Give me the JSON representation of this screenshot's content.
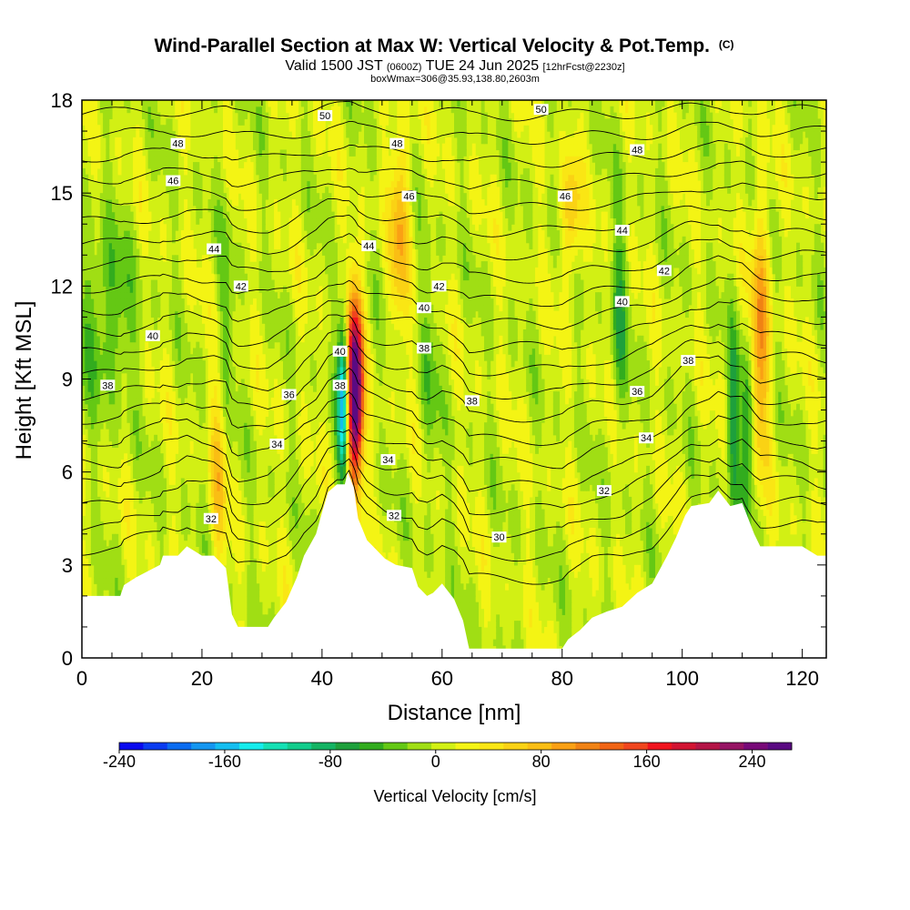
{
  "chart_data": {
    "type": "heatmap",
    "title": "Wind-Parallel Section at Max W: Vertical Velocity & Pot.Temp.",
    "title_mark": "(C)",
    "subtitle_parts": [
      "Valid 1500 JST",
      "(0600Z)",
      "TUE 24 Jun 2025",
      "[12hrFcst@2230z]"
    ],
    "subtitle2": "boxWmax=306@35.93,138.80,2603m",
    "xlabel": "Distance [nm]",
    "ylabel": "Height [Kft MSL]",
    "xlim": [
      0,
      124
    ],
    "ylim": [
      0,
      18
    ],
    "x_ticks": [
      0,
      20,
      40,
      60,
      80,
      100,
      120
    ],
    "y_ticks": [
      0,
      3,
      6,
      9,
      12,
      15,
      18
    ],
    "colorbar": {
      "label": "Vertical Velocity [cm/s]",
      "range": [
        -240,
        270
      ],
      "tick_values": [
        -240,
        -160,
        -80,
        0,
        80,
        160,
        240
      ],
      "colors": [
        "#0a0aee",
        "#0a3cf0",
        "#0a6cf0",
        "#1496f0",
        "#14bef0",
        "#14ecec",
        "#14e0b4",
        "#12cc8c",
        "#14b464",
        "#1ea03c",
        "#32ac1e",
        "#64c814",
        "#a0de14",
        "#d2f014",
        "#f4f414",
        "#fae614",
        "#fad214",
        "#fabe14",
        "#faa014",
        "#f08214",
        "#f06414",
        "#f0461e",
        "#f0141e",
        "#d21432",
        "#b41446",
        "#961464",
        "#780a78",
        "#5a0a82"
      ]
    },
    "contour_field": "Potential temperature",
    "contour_levels": [
      30,
      31,
      32,
      33,
      34,
      35,
      36,
      37,
      38,
      39,
      40,
      41,
      42,
      43,
      44,
      45,
      46,
      47,
      48,
      49,
      50
    ],
    "contour_labels": [
      {
        "text": "50",
        "x": 40.5,
        "y": 17.5
      },
      {
        "text": "50",
        "x": 76.5,
        "y": 17.7
      },
      {
        "text": "48",
        "x": 16,
        "y": 16.6
      },
      {
        "text": "48",
        "x": 52.5,
        "y": 16.6
      },
      {
        "text": "48",
        "x": 92.5,
        "y": 16.4
      },
      {
        "text": "46",
        "x": 15.2,
        "y": 15.4
      },
      {
        "text": "46",
        "x": 54.5,
        "y": 14.9
      },
      {
        "text": "46",
        "x": 80.5,
        "y": 14.9
      },
      {
        "text": "44",
        "x": 22,
        "y": 13.2
      },
      {
        "text": "44",
        "x": 47.8,
        "y": 13.3
      },
      {
        "text": "44",
        "x": 90,
        "y": 13.8
      },
      {
        "text": "42",
        "x": 26.5,
        "y": 12.0
      },
      {
        "text": "42",
        "x": 59.5,
        "y": 12.0
      },
      {
        "text": "42",
        "x": 97,
        "y": 12.5
      },
      {
        "text": "40",
        "x": 11.8,
        "y": 10.4
      },
      {
        "text": "40",
        "x": 43,
        "y": 9.9
      },
      {
        "text": "40",
        "x": 57,
        "y": 11.3
      },
      {
        "text": "40",
        "x": 90,
        "y": 11.5
      },
      {
        "text": "38",
        "x": 4.3,
        "y": 8.8
      },
      {
        "text": "38",
        "x": 43,
        "y": 8.8
      },
      {
        "text": "38",
        "x": 57,
        "y": 10.0
      },
      {
        "text": "38",
        "x": 65,
        "y": 8.3
      },
      {
        "text": "38",
        "x": 101,
        "y": 9.6
      },
      {
        "text": "36",
        "x": 34.5,
        "y": 8.5
      },
      {
        "text": "36",
        "x": 92.5,
        "y": 8.6
      },
      {
        "text": "34",
        "x": 32.5,
        "y": 6.9
      },
      {
        "text": "34",
        "x": 51,
        "y": 6.4
      },
      {
        "text": "34",
        "x": 94,
        "y": 7.1
      },
      {
        "text": "32",
        "x": 21.5,
        "y": 4.5
      },
      {
        "text": "32",
        "x": 52,
        "y": 4.6
      },
      {
        "text": "32",
        "x": 87,
        "y": 5.4
      },
      {
        "text": "30",
        "x": 69.5,
        "y": 3.9
      }
    ],
    "updraft_max_cm_s": 306,
    "updraft_location_nm": 45.5,
    "terrain_profile": [
      [
        0,
        2.0
      ],
      [
        6.4,
        2.0
      ],
      [
        7,
        2.35
      ],
      [
        9,
        2.6
      ],
      [
        13,
        3.0
      ],
      [
        13.5,
        3.3
      ],
      [
        16,
        3.3
      ],
      [
        17.5,
        3.6
      ],
      [
        20,
        3.3
      ],
      [
        22,
        3.3
      ],
      [
        24,
        2.9
      ],
      [
        25,
        1.4
      ],
      [
        26,
        1.0
      ],
      [
        31,
        1.0
      ],
      [
        32,
        1.3
      ],
      [
        34,
        1.8
      ],
      [
        35.8,
        2.6
      ],
      [
        37,
        3.3
      ],
      [
        39,
        4.0
      ],
      [
        40,
        4.7
      ],
      [
        41,
        5.35
      ],
      [
        42.5,
        5.6
      ],
      [
        43.8,
        5.6
      ],
      [
        44.3,
        6.0
      ],
      [
        45.3,
        5.5
      ],
      [
        46,
        4.5
      ],
      [
        47.5,
        3.8
      ],
      [
        48.5,
        3.6
      ],
      [
        50.5,
        3.2
      ],
      [
        52.3,
        3.0
      ],
      [
        55,
        2.9
      ],
      [
        56,
        2.3
      ],
      [
        57.5,
        2.0
      ],
      [
        58.5,
        2.1
      ],
      [
        60,
        2.4
      ],
      [
        62,
        1.9
      ],
      [
        63.5,
        1.2
      ],
      [
        64.5,
        0.3
      ],
      [
        80,
        0.3
      ],
      [
        81,
        0.6
      ],
      [
        83,
        0.9
      ],
      [
        85,
        1.3
      ],
      [
        87.5,
        1.5
      ],
      [
        90,
        1.65
      ],
      [
        92.5,
        2.1
      ],
      [
        95,
        2.4
      ],
      [
        97.5,
        3.3
      ],
      [
        99,
        3.9
      ],
      [
        100.5,
        4.6
      ],
      [
        101.5,
        4.9
      ],
      [
        104.5,
        5.0
      ],
      [
        106,
        5.4
      ],
      [
        108,
        4.9
      ],
      [
        110,
        5.0
      ],
      [
        112,
        4.0
      ],
      [
        113,
        3.6
      ],
      [
        120,
        3.6
      ],
      [
        122.5,
        3.3
      ],
      [
        124,
        3.3
      ]
    ],
    "vertical_velocity_features": [
      {
        "x_center": 45.5,
        "x_width": 1.3,
        "y_center": 8.6,
        "y_width": 3.0,
        "w": 306
      },
      {
        "x_center": 43.5,
        "x_width": 0.9,
        "y_center": 8.3,
        "y_width": 2.5,
        "w": -180
      },
      {
        "x_center": 22.8,
        "x_width": 1.4,
        "y_center": 6.0,
        "y_width": 3.4,
        "w": 60
      },
      {
        "x_center": 53,
        "x_width": 1.6,
        "y_center": 14.0,
        "y_width": 3.0,
        "w": 80
      },
      {
        "x_center": 81.5,
        "x_width": 1.5,
        "y_center": 14.3,
        "y_width": 2.0,
        "w": 70
      },
      {
        "x_center": 113,
        "x_width": 1.6,
        "y_center": 10.5,
        "y_width": 4.0,
        "w": 100
      },
      {
        "x_center": 108.5,
        "x_width": 1.0,
        "y_center": 7.5,
        "y_width": 3.0,
        "w": -70
      },
      {
        "x_center": 110.8,
        "x_width": 1.0,
        "y_center": 7.3,
        "y_width": 3.0,
        "w": -80
      },
      {
        "x_center": 89.5,
        "x_width": 1.3,
        "y_center": 11.0,
        "y_width": 3.5,
        "w": -55
      },
      {
        "x_center": 4,
        "x_width": 4.5,
        "y_center": 11.0,
        "y_width": 2.8,
        "w": -50
      },
      {
        "x_center": 24,
        "x_width": 1.4,
        "y_center": 10.5,
        "y_width": 3.5,
        "w": -35
      },
      {
        "x_center": 58,
        "x_width": 1.5,
        "y_center": 9.0,
        "y_width": 4.0,
        "w": -30
      }
    ]
  }
}
